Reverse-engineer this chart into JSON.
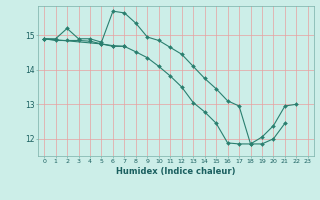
{
  "title": "",
  "xlabel": "Humidex (Indice chaleur)",
  "ylabel": "",
  "background_color": "#cceee8",
  "grid_color_v": "#e8a0a0",
  "grid_color_h": "#e8a0a0",
  "line_color": "#2a7f6f",
  "xlim": [
    -0.5,
    23.5
  ],
  "ylim": [
    11.5,
    15.85
  ],
  "yticks": [
    12,
    13,
    14,
    15
  ],
  "xticks": [
    0,
    1,
    2,
    3,
    4,
    5,
    6,
    7,
    8,
    9,
    10,
    11,
    12,
    13,
    14,
    15,
    16,
    17,
    18,
    19,
    20,
    21,
    22,
    23
  ],
  "series1_x": [
    0,
    1,
    2,
    3,
    4,
    5,
    6,
    7,
    8,
    9,
    10,
    11,
    12,
    13,
    14,
    15,
    16,
    17,
    18,
    19,
    20,
    21
  ],
  "series1_y": [
    14.9,
    14.9,
    15.2,
    14.9,
    14.9,
    14.8,
    15.7,
    15.65,
    15.35,
    14.95,
    14.85,
    14.65,
    14.45,
    14.1,
    13.75,
    13.45,
    13.1,
    12.95,
    11.85,
    11.85,
    12.0,
    12.45
  ],
  "series2_x": [
    0,
    1,
    2,
    3,
    4,
    5,
    6,
    7
  ],
  "series2_y": [
    14.9,
    14.85,
    14.85,
    14.85,
    14.83,
    14.75,
    14.7,
    14.68
  ],
  "series3_x": [
    0,
    5,
    6,
    7,
    8,
    9,
    10,
    11,
    12,
    13,
    14,
    15,
    16,
    17,
    18,
    19,
    20,
    21,
    22
  ],
  "series3_y": [
    14.9,
    14.75,
    14.68,
    14.68,
    14.52,
    14.35,
    14.1,
    13.82,
    13.5,
    13.05,
    12.78,
    12.45,
    11.88,
    11.85,
    11.85,
    12.05,
    12.38,
    12.95,
    13.0
  ]
}
